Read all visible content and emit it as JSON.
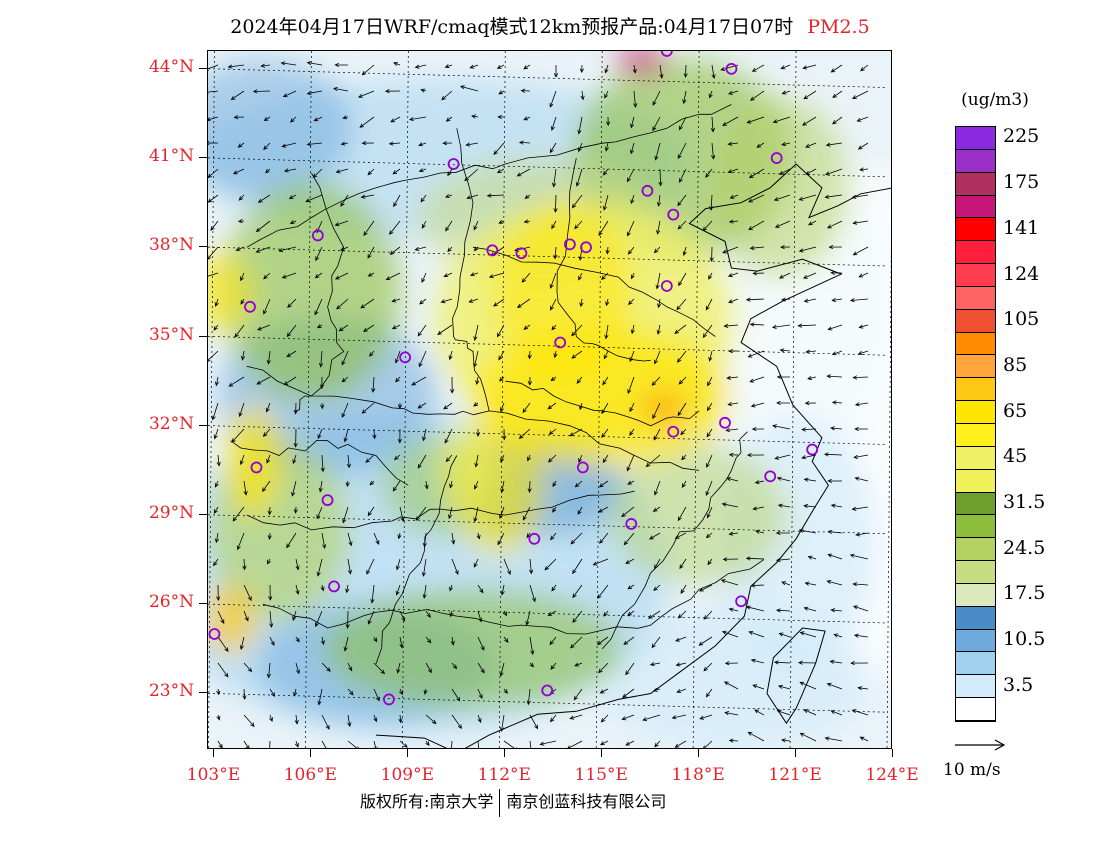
{
  "title": {
    "main": "2024年04月17日WRF/cmaq模式12km预报产品:04月17日07时",
    "pollutant": "PM2.5"
  },
  "map": {
    "lat_labels": [
      "44°N",
      "41°N",
      "38°N",
      "35°N",
      "32°N",
      "29°N",
      "26°N",
      "23°N"
    ],
    "lon_labels": [
      "103°E",
      "106°E",
      "109°E",
      "112°E",
      "115°E",
      "118°E",
      "121°E",
      "124°E"
    ],
    "extent": {
      "lon_min": 102.8,
      "lon_max": 124.0,
      "lat_min": 21.1,
      "lat_max": 44.6
    },
    "site_markers": [
      [
        103.0,
        25.0
      ],
      [
        104.3,
        30.6
      ],
      [
        104.1,
        36.0
      ],
      [
        106.5,
        29.5
      ],
      [
        106.7,
        26.6
      ],
      [
        108.4,
        22.8
      ],
      [
        106.2,
        38.4
      ],
      [
        108.9,
        34.3
      ],
      [
        110.4,
        40.8
      ],
      [
        111.6,
        37.9
      ],
      [
        112.5,
        37.8
      ],
      [
        114.0,
        38.1
      ],
      [
        113.7,
        34.8
      ],
      [
        114.4,
        30.6
      ],
      [
        112.9,
        28.2
      ],
      [
        113.3,
        23.1
      ],
      [
        115.9,
        28.7
      ],
      [
        117.2,
        31.8
      ],
      [
        116.4,
        39.9
      ],
      [
        117.2,
        39.1
      ],
      [
        114.5,
        38.0
      ],
      [
        117.0,
        36.7
      ],
      [
        118.8,
        32.1
      ],
      [
        120.2,
        30.3
      ],
      [
        121.5,
        31.2
      ],
      [
        119.3,
        26.1
      ],
      [
        117.0,
        44.6
      ],
      [
        120.4,
        41.0
      ],
      [
        119.0,
        44.0
      ]
    ],
    "wind_field_colors": {
      "arrow": "#000000",
      "boundary": "#000000",
      "grid": "#000000"
    }
  },
  "legend": {
    "unit": "(ug/m3)",
    "levels": [
      {
        "label": "225",
        "color": "#8a2be2"
      },
      {
        "label": "",
        "color": "#9b30c9"
      },
      {
        "label": "175",
        "color": "#b03060"
      },
      {
        "label": "",
        "color": "#c8157a"
      },
      {
        "label": "141",
        "color": "#ff0000"
      },
      {
        "label": "",
        "color": "#ff1e3c"
      },
      {
        "label": "124",
        "color": "#ff3c50"
      },
      {
        "label": "",
        "color": "#ff6464"
      },
      {
        "label": "105",
        "color": "#f05032"
      },
      {
        "label": "",
        "color": "#ff8c00"
      },
      {
        "label": "85",
        "color": "#ffa53c"
      },
      {
        "label": "",
        "color": "#ffc814"
      },
      {
        "label": "65",
        "color": "#ffe600"
      },
      {
        "label": "",
        "color": "#fff01e"
      },
      {
        "label": "45",
        "color": "#f0f064"
      },
      {
        "label": "",
        "color": "#f0f05a"
      },
      {
        "label": "31.5",
        "color": "#6e9e2d"
      },
      {
        "label": "",
        "color": "#8cbe3c"
      },
      {
        "label": "24.5",
        "color": "#b4d264"
      },
      {
        "label": "",
        "color": "#c8dc82"
      },
      {
        "label": "17.5",
        "color": "#dce8be"
      },
      {
        "label": "",
        "color": "#4a8cc8"
      },
      {
        "label": "10.5",
        "color": "#6eaadc"
      },
      {
        "label": "",
        "color": "#a0d2f0"
      },
      {
        "label": "3.5",
        "color": "#d2ebfa"
      },
      {
        "label": "",
        "color": "#ffffff"
      }
    ]
  },
  "wind_reference": {
    "label": "10 m/s"
  },
  "footer": {
    "left": "版权所有:南京大学",
    "right": "南京创蓝科技有限公司"
  }
}
